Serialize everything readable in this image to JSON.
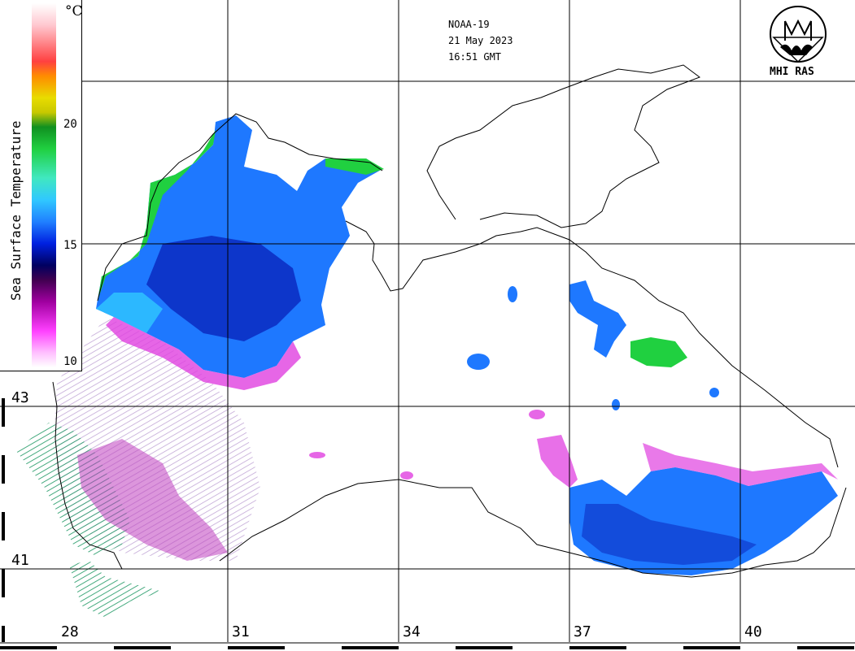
{
  "satellite": "NOAA-19",
  "date": "21 May 2023",
  "time": "16:51 GMT",
  "logo_text": "MHI RAS",
  "legend": {
    "title": "Sea Surface Temperature",
    "unit": "°C",
    "ticks": [
      "20",
      "15",
      "10"
    ]
  },
  "lat_labels": [
    "43",
    "41"
  ],
  "lon_labels": [
    "28",
    "31",
    "34",
    "37",
    "40"
  ],
  "colors": {
    "warm": "#20d040",
    "mid": "#1e78ff",
    "cool": "#0820b8",
    "cold": "#e040e0",
    "coast": "#000000"
  }
}
